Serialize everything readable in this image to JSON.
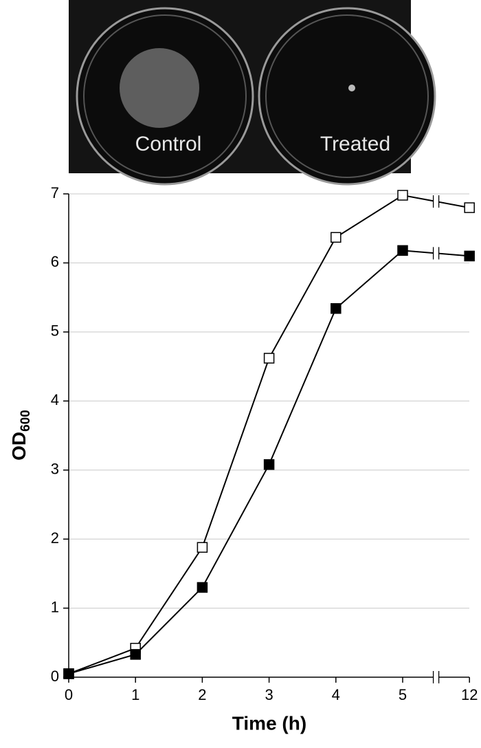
{
  "photo": {
    "labels": [
      "Control",
      "Treated"
    ]
  },
  "chart_data": {
    "type": "line",
    "y_label": "OD",
    "y_label_sub": "600",
    "x_label": "Time (h)",
    "categories": [
      "0",
      "1",
      "2",
      "3",
      "4",
      "5",
      "12"
    ],
    "series": [
      {
        "color": "#ffffff",
        "values": [
          0.05,
          0.42,
          1.88,
          4.62,
          6.37,
          6.98,
          6.8
        ]
      },
      {
        "color": "#000000",
        "values": [
          0.05,
          0.33,
          1.3,
          3.08,
          5.34,
          6.18,
          6.1
        ]
      }
    ],
    "ylim": [
      0,
      7
    ],
    "yticks": [
      0,
      1,
      2,
      3,
      4,
      5,
      6,
      7
    ],
    "grid": true
  }
}
